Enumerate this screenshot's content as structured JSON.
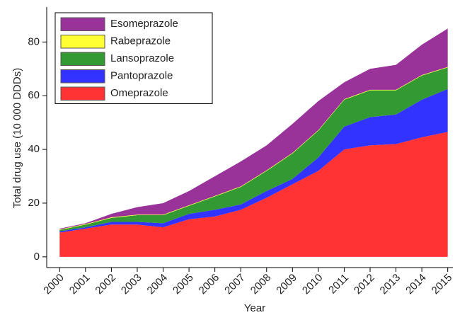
{
  "chart_data": {
    "type": "stacked_area",
    "x_label": "Year",
    "y_label": "Total drug use (10 000 DDDs)",
    "x": [
      2000,
      2001,
      2002,
      2003,
      2004,
      2005,
      2006,
      2007,
      2008,
      2009,
      2010,
      2011,
      2012,
      2013,
      2014,
      2015
    ],
    "series": [
      {
        "name": "Omeprazole",
        "color": "#ff3333",
        "values": [
          9,
          10.5,
          12,
          12,
          11,
          14,
          15,
          17.5,
          22,
          27,
          32,
          40,
          41.5,
          42,
          44.5,
          46.5
        ]
      },
      {
        "name": "Pantoprazole",
        "color": "#3333ff",
        "values": [
          0.5,
          0.5,
          1,
          1,
          1.5,
          2,
          2.5,
          2,
          2.5,
          2,
          5,
          8.5,
          10.5,
          11,
          14,
          16
        ]
      },
      {
        "name": "Lansoprazole",
        "color": "#339933",
        "values": [
          0.5,
          1,
          1.5,
          2.5,
          3,
          3,
          5,
          6.5,
          7.5,
          9.5,
          10,
          10,
          10,
          9,
          9,
          8
        ]
      },
      {
        "name": "Rabeprazole",
        "color": "#ffff33",
        "values": [
          0.2,
          0.2,
          0.2,
          0.2,
          0.2,
          0.2,
          0.2,
          0.2,
          0.2,
          0.2,
          0.2,
          0.2,
          0.2,
          0.2,
          0.2,
          0.2
        ]
      },
      {
        "name": "Esomeprazole",
        "color": "#993399",
        "values": [
          0.3,
          0.3,
          1.3,
          2.8,
          4.3,
          5.3,
          7.3,
          9.3,
          9.3,
          10.8,
          10.8,
          6.3,
          7.8,
          9.3,
          11.3,
          14.3
        ]
      }
    ],
    "xlim": [
      1999.5,
      2015.2
    ],
    "xticks": [
      2000,
      2001,
      2002,
      2003,
      2004,
      2005,
      2006,
      2007,
      2008,
      2009,
      2010,
      2011,
      2012,
      2013,
      2014,
      2015
    ],
    "ylim": [
      -4,
      93
    ],
    "yticks": [
      0,
      20,
      40,
      60,
      80
    ],
    "legend": "upper left"
  }
}
